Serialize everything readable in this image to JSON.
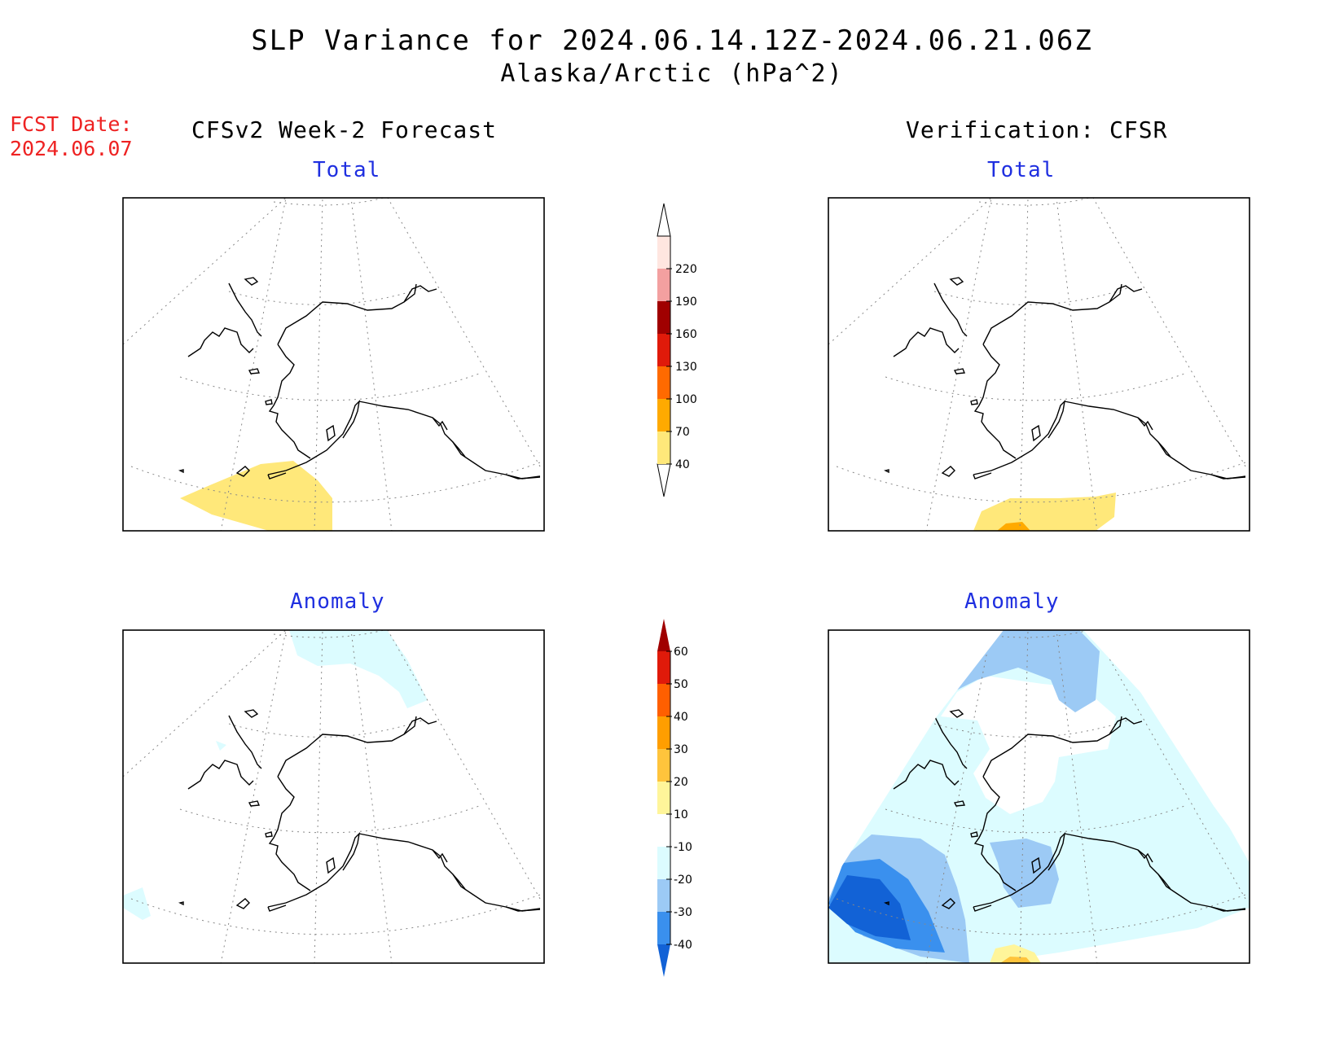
{
  "header": {
    "title": "SLP Variance for 2024.06.14.12Z-2024.06.21.06Z",
    "subtitle": "Alaska/Arctic (hPa^2)"
  },
  "forecast_date": {
    "label": "FCST Date:",
    "value": "2024.06.07"
  },
  "columns": {
    "left": "CFSv2 Week-2 Forecast",
    "right": "Verification: CFSR"
  },
  "panels": {
    "forecast_total": "Total",
    "verification_total": "Total",
    "forecast_anomaly": "Anomaly",
    "verification_anomaly": "Anomaly"
  },
  "colorbars": {
    "total": {
      "ticks": [
        "40",
        "70",
        "100",
        "130",
        "160",
        "190",
        "220"
      ],
      "colors": [
        "#ffe87a",
        "#ffaa00",
        "#ff6a00",
        "#e01a0a",
        "#a00000",
        "#f3a0a0",
        "#ffe6e0"
      ]
    },
    "anomaly": {
      "ticks": [
        "-40",
        "-30",
        "-20",
        "-10",
        "10",
        "20",
        "30",
        "40",
        "50",
        "60"
      ],
      "colors": [
        "#1262d6",
        "#3a90ee",
        "#9ccaf5",
        "#dcfcff",
        "#ffffff",
        "#fff59a",
        "#ffc43c",
        "#ff9e00",
        "#ff5f00",
        "#e01a0a",
        "#a00000"
      ]
    }
  },
  "map_colors": {
    "yellow": "#ffe87a",
    "orange": "#ffaa00",
    "blue_dark": "#1262d6",
    "blue_mid": "#3a90ee",
    "blue_light": "#9ccaf5",
    "blue_pale": "#dcfcff",
    "pale_yellow": "#fff59a"
  }
}
